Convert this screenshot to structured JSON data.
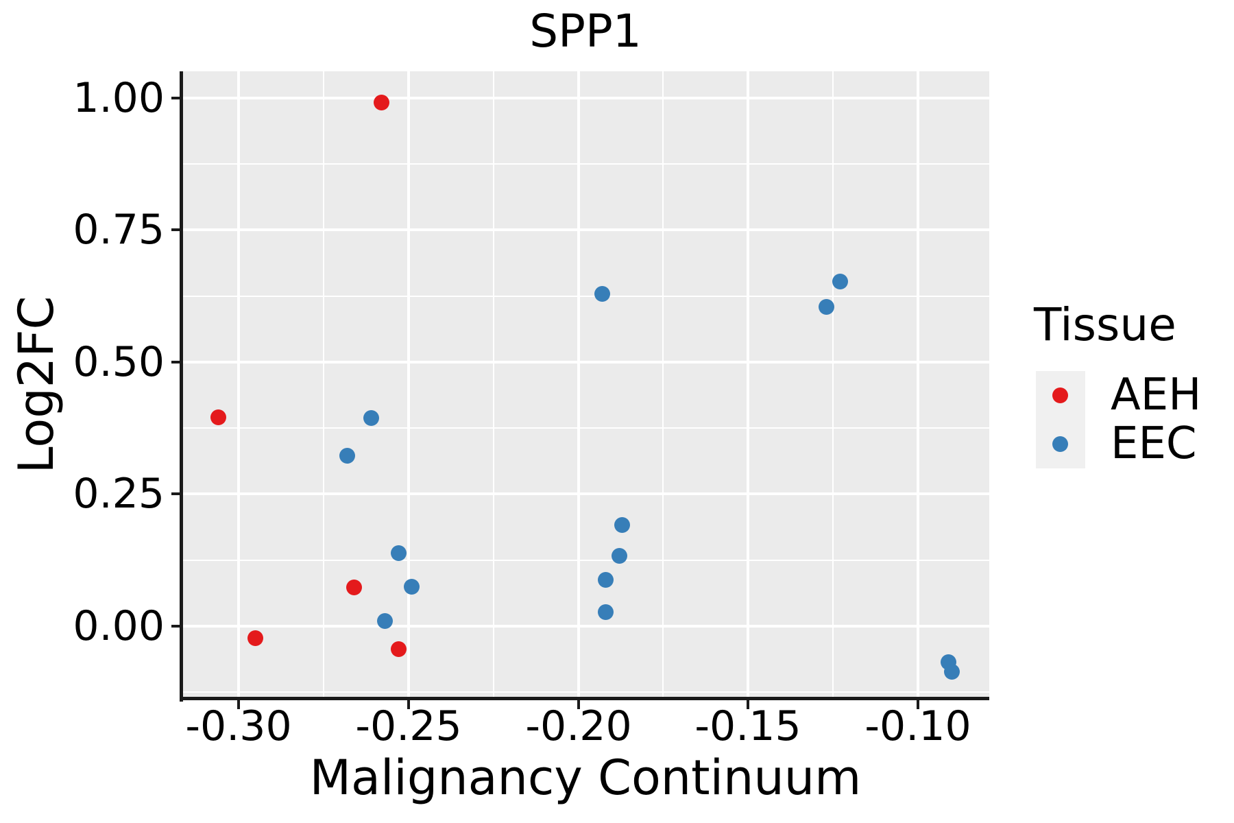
{
  "figure": {
    "title": "SPP1"
  },
  "legend": {
    "title": "Tissue",
    "items": [
      {
        "label": "AEH",
        "color": "#E41A1C",
        "swatch": "dot-icon"
      },
      {
        "label": "EEC",
        "color": "#377EB8",
        "swatch": "dot-icon"
      }
    ]
  },
  "chart_data": {
    "type": "scatter",
    "title": "SPP1",
    "xlabel": "Malignancy Continuum",
    "ylabel": "Log2FC",
    "xlim": [
      -0.3168,
      -0.079
    ],
    "ylim": [
      -0.1364,
      1.0506
    ],
    "x_ticks": [
      -0.3,
      -0.25,
      -0.2,
      -0.15,
      -0.1
    ],
    "x_tick_labels": [
      "-0.30",
      "-0.25",
      "-0.20",
      "-0.15",
      "-0.10"
    ],
    "x_minor_ticks": [
      -0.275,
      -0.225,
      -0.175,
      -0.125
    ],
    "y_ticks": [
      0.0,
      0.25,
      0.5,
      0.75,
      1.0
    ],
    "y_tick_labels": [
      "0.00",
      "0.25",
      "0.50",
      "0.75",
      "1.00"
    ],
    "y_minor_ticks": [
      -0.125,
      0.125,
      0.375,
      0.625,
      0.875
    ],
    "grid": true,
    "panel_background": "#EBEBEB",
    "legend_position": "right",
    "series": [
      {
        "name": "AEH",
        "color": "#E41A1C",
        "points": [
          [
            -0.306,
            0.395
          ],
          [
            -0.295,
            -0.023
          ],
          [
            -0.266,
            0.073
          ],
          [
            -0.258,
            0.992
          ],
          [
            -0.253,
            -0.043
          ]
        ]
      },
      {
        "name": "EEC",
        "color": "#377EB8",
        "points": [
          [
            -0.268,
            0.323
          ],
          [
            -0.261,
            0.394
          ],
          [
            -0.257,
            0.01
          ],
          [
            -0.253,
            0.138
          ],
          [
            -0.249,
            0.074
          ],
          [
            -0.193,
            0.629
          ],
          [
            -0.192,
            0.087
          ],
          [
            -0.192,
            0.026
          ],
          [
            -0.188,
            0.133
          ],
          [
            -0.187,
            0.192
          ],
          [
            -0.127,
            0.604
          ],
          [
            -0.123,
            0.653
          ],
          [
            -0.091,
            -0.068
          ],
          [
            -0.09,
            -0.087
          ]
        ]
      }
    ]
  }
}
